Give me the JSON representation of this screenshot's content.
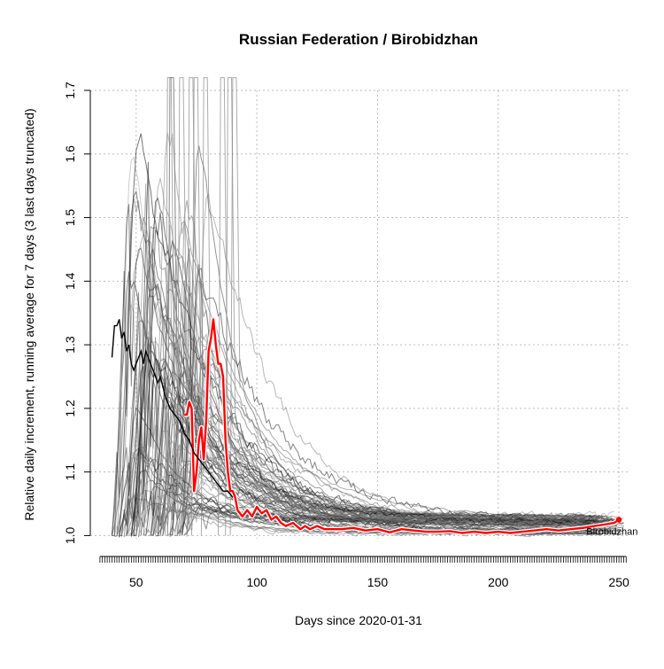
{
  "chart_data": {
    "type": "line",
    "title": "Russian Federation / Birobidzhan",
    "xlabel": "Days since 2020-01-31",
    "ylabel": "Relative daily increment, running average for 7 days (3 last days truncated)",
    "xlim": [
      31,
      254
    ],
    "ylim": [
      0.995,
      1.7
    ],
    "x_ticks": [
      50,
      100,
      150,
      200,
      250
    ],
    "x_tick_labels": [
      "50",
      "100",
      "150",
      "200",
      "250"
    ],
    "y_ticks": [
      1.0,
      1.1,
      1.2,
      1.3,
      1.4,
      1.5,
      1.6,
      1.7
    ],
    "y_tick_labels": [
      "1.0",
      "1.1",
      "1.2",
      "1.3",
      "1.4",
      "1.5",
      "1.6",
      "1.7"
    ],
    "grid": true,
    "highlight_color": "#ff0000",
    "background_color": "#000000",
    "series": [
      {
        "name": "Birobidzhan",
        "role": "highlight",
        "x": [
          70,
          71,
          72,
          73,
          74,
          75,
          76,
          77,
          78,
          79,
          80,
          81,
          82,
          83,
          84,
          85,
          86,
          87,
          88,
          89,
          90,
          91,
          92,
          94,
          96,
          98,
          100,
          102,
          104,
          106,
          108,
          110,
          112,
          115,
          118,
          120,
          122,
          125,
          128,
          131,
          135,
          140,
          145,
          150,
          155,
          160,
          165,
          170,
          175,
          180,
          185,
          190,
          195,
          200,
          205,
          210,
          215,
          220,
          225,
          230,
          235,
          240,
          245,
          248,
          250
        ],
        "y": [
          1.19,
          1.19,
          1.21,
          1.2,
          1.07,
          1.1,
          1.15,
          1.17,
          1.12,
          1.18,
          1.29,
          1.31,
          1.34,
          1.3,
          1.27,
          1.27,
          1.25,
          1.15,
          1.1,
          1.07,
          1.07,
          1.06,
          1.04,
          1.03,
          1.04,
          1.03,
          1.045,
          1.035,
          1.04,
          1.025,
          1.03,
          1.02,
          1.015,
          1.02,
          1.01,
          1.015,
          1.01,
          1.015,
          1.01,
          1.01,
          1.01,
          1.012,
          1.008,
          1.01,
          1.005,
          1.01,
          1.008,
          1.006,
          1.006,
          1.007,
          1.004,
          1.006,
          1.004,
          1.006,
          1.004,
          1.006,
          1.008,
          1.01,
          1.008,
          1.01,
          1.012,
          1.015,
          1.018,
          1.02,
          1.025
        ]
      },
      {
        "name": "",
        "role": "aggregate",
        "x": [
          40,
          41,
          42,
          43,
          44,
          45,
          46,
          47,
          48,
          49,
          50,
          51,
          52,
          53,
          54,
          55,
          56,
          57,
          58,
          59,
          60,
          62,
          64,
          66,
          68,
          70,
          72,
          74,
          76,
          78,
          80,
          82,
          84,
          86,
          88,
          90
        ],
        "y": [
          1.28,
          1.33,
          1.33,
          1.34,
          1.31,
          1.32,
          1.29,
          1.3,
          1.27,
          1.26,
          1.27,
          1.28,
          1.29,
          1.27,
          1.29,
          1.28,
          1.27,
          1.26,
          1.25,
          1.24,
          1.25,
          1.22,
          1.2,
          1.19,
          1.18,
          1.16,
          1.15,
          1.13,
          1.12,
          1.11,
          1.1,
          1.09,
          1.08,
          1.07,
          1.07,
          1.06
        ]
      }
    ],
    "end_label": "Birobidzhan"
  }
}
